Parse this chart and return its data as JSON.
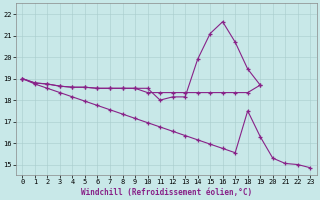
{
  "curve_peak": {
    "x": [
      0,
      1,
      2,
      3,
      4,
      5,
      6,
      7,
      8,
      9,
      10,
      11,
      12,
      13,
      14,
      15,
      16,
      17,
      18,
      19
    ],
    "y": [
      19.0,
      18.8,
      18.75,
      18.65,
      18.6,
      18.6,
      18.55,
      18.55,
      18.55,
      18.55,
      18.55,
      18.0,
      18.15,
      18.15,
      19.9,
      21.1,
      21.65,
      20.7,
      19.45,
      18.7
    ]
  },
  "curve_flat": {
    "x": [
      0,
      1,
      2,
      3,
      4,
      5,
      6,
      7,
      8,
      9,
      10,
      11,
      12,
      13,
      14,
      15,
      16,
      17,
      18,
      19
    ],
    "y": [
      19.0,
      18.8,
      18.75,
      18.65,
      18.6,
      18.6,
      18.55,
      18.55,
      18.55,
      18.55,
      18.35,
      18.35,
      18.35,
      18.35,
      18.35,
      18.35,
      18.35,
      18.35,
      18.35,
      18.7
    ]
  },
  "curve_decline": {
    "x": [
      0,
      1,
      2,
      3,
      4,
      5,
      6,
      7,
      8,
      9,
      10,
      11,
      12,
      13,
      14,
      15,
      16,
      17,
      18,
      19,
      20,
      21,
      22,
      23
    ],
    "y": [
      19.0,
      18.75,
      18.55,
      18.35,
      18.15,
      17.95,
      17.75,
      17.55,
      17.35,
      17.15,
      16.95,
      16.75,
      16.55,
      16.35,
      16.15,
      15.95,
      15.75,
      15.55,
      17.5,
      16.3,
      15.3,
      15.05,
      15.0,
      14.85
    ]
  },
  "line_color": "#882288",
  "bg_color": "#c8e8e8",
  "grid_color": "#a8cccc",
  "xlabel": "Windchill (Refroidissement éolien,°C)",
  "xlim": [
    -0.5,
    23.5
  ],
  "ylim": [
    14.5,
    22.5
  ],
  "yticks": [
    15,
    16,
    17,
    18,
    19,
    20,
    21,
    22
  ],
  "xticks": [
    0,
    1,
    2,
    3,
    4,
    5,
    6,
    7,
    8,
    9,
    10,
    11,
    12,
    13,
    14,
    15,
    16,
    17,
    18,
    19,
    20,
    21,
    22,
    23
  ],
  "xlabel_color": "#882288",
  "title_fontsize": 5,
  "tick_fontsize": 5,
  "xlabel_fontsize": 5.5
}
